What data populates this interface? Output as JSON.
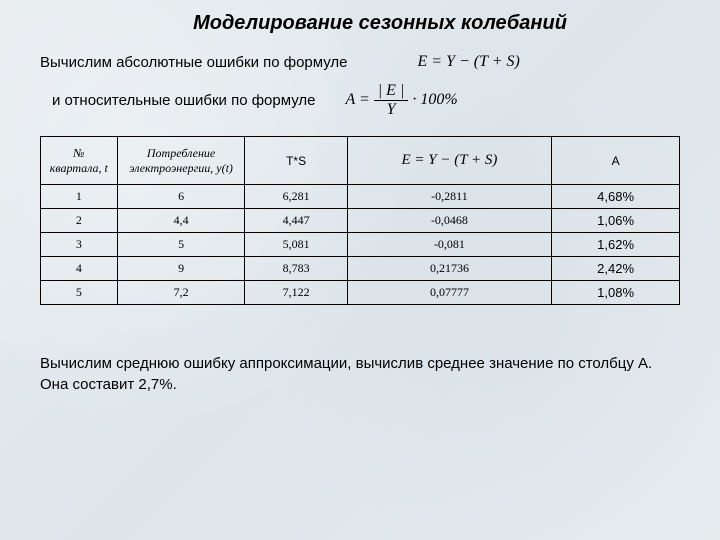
{
  "title": "Моделирование сезонных колебаний",
  "text1": "Вычислим абсолютные ошибки по формуле",
  "formula1": "E = Y − (T + S)",
  "text2": "и относительные ошибки по формуле",
  "formula2_prefix": "A = ",
  "formula2_num": "| E |",
  "formula2_den": "Y",
  "formula2_suffix": " · 100%",
  "table": {
    "headers": {
      "num": "№ квартала, t",
      "consumption": "Потребление электроэнергии, y(t)",
      "ts": "T*S",
      "e": "E = Y − (T + S)",
      "a": "A"
    },
    "rows": [
      {
        "t": "1",
        "y": "6",
        "ts": "6,281",
        "e": "-0,2811",
        "a": "4,68%"
      },
      {
        "t": "2",
        "y": "4,4",
        "ts": "4,447",
        "e": "-0,0468",
        "a": "1,06%"
      },
      {
        "t": "3",
        "y": "5",
        "ts": "5,081",
        "e": "-0,081",
        "a": "1,62%"
      },
      {
        "t": "4",
        "y": "9",
        "ts": "8,783",
        "e": "0,21736",
        "a": "2,42%"
      },
      {
        "t": "5",
        "y": "7,2",
        "ts": "7,122",
        "e": "0,07777",
        "a": "1,08%"
      }
    ]
  },
  "bottom_text": "Вычислим среднюю ошибку аппроксимации, вычислив среднее значение по столбцу А. Она составит 2,7%."
}
